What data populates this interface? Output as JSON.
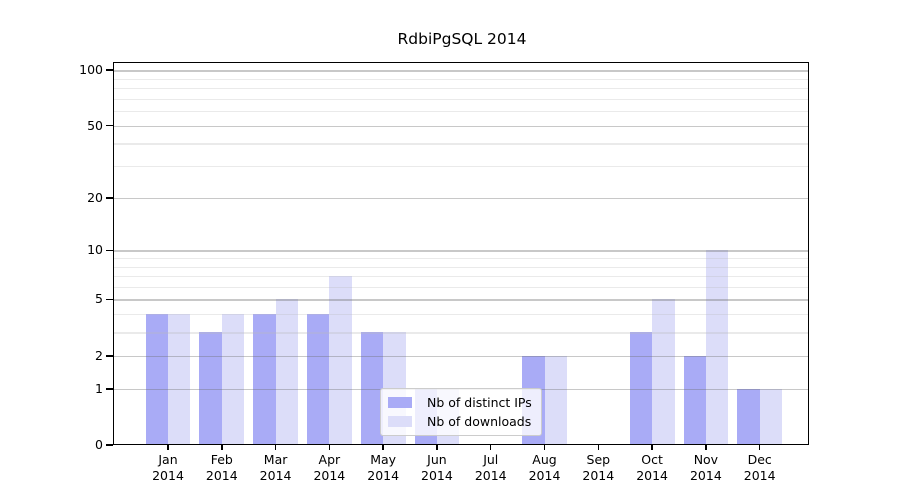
{
  "chart_data": {
    "type": "bar",
    "title": "RdbiPgSQL 2014",
    "y_scale": "log1p",
    "xlabel": "",
    "ylabel": "",
    "grid": "on",
    "legend_position": "lower center",
    "categories": [
      "Jan 2014",
      "Feb 2014",
      "Mar 2014",
      "Apr 2014",
      "May 2014",
      "Jun 2014",
      "Jul 2014",
      "Aug 2014",
      "Sep 2014",
      "Oct 2014",
      "Nov 2014",
      "Dec 2014"
    ],
    "series": [
      {
        "name": "Nb of distinct IPs",
        "color": "#a9abf6",
        "values": [
          4,
          3,
          4,
          4,
          3,
          1,
          0,
          2,
          0,
          3,
          2,
          1
        ]
      },
      {
        "name": "Nb of downloads",
        "color": "#dcddf9",
        "values": [
          4,
          4,
          5,
          7,
          3,
          1,
          0,
          2,
          0,
          5,
          10,
          1
        ]
      }
    ],
    "y_ticks": [
      0,
      1,
      2,
      5,
      10,
      20,
      50,
      100
    ],
    "y_minor_ticks": [
      3,
      4,
      6,
      7,
      8,
      9,
      30,
      40,
      60,
      70,
      80,
      90
    ],
    "ylim": [
      0,
      112
    ],
    "colors": {
      "major_grid": "#c9c9c9",
      "minor_grid": "#ececec",
      "axis": "#000000",
      "text": "#000000",
      "background": "#ffffff"
    }
  }
}
